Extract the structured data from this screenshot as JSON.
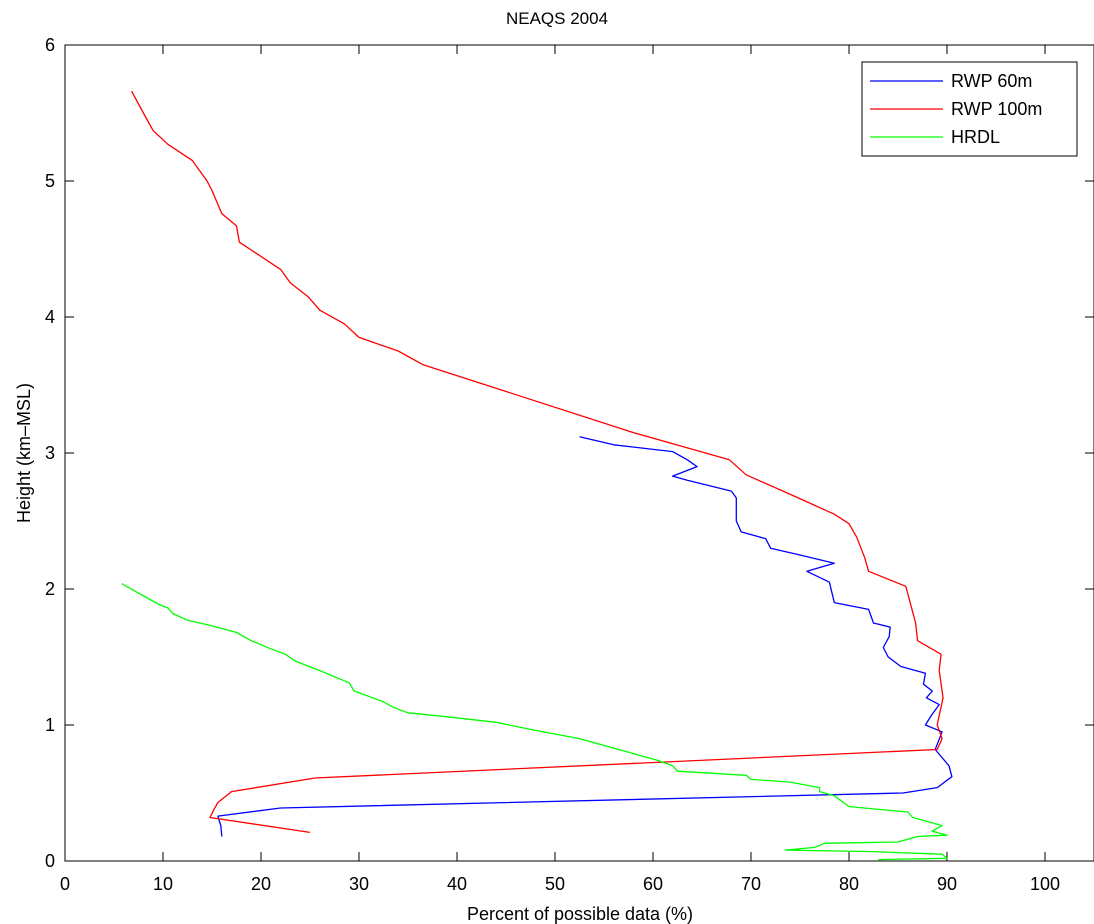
{
  "chart_data": {
    "type": "line",
    "title": "NEAQS 2004",
    "xlabel": "Percent of possible data (%)",
    "ylabel": "Height (km–MSL)",
    "xlim": [
      0,
      105
    ],
    "ylim": [
      0,
      6
    ],
    "xticks": [
      "0",
      "10",
      "20",
      "30",
      "40",
      "50",
      "60",
      "70",
      "80",
      "90",
      "100"
    ],
    "yticks": [
      "0",
      "1",
      "2",
      "3",
      "4",
      "5",
      "6"
    ],
    "grid": false,
    "legend_position": "top-right",
    "series": [
      {
        "name": "RWP 60m",
        "color": "#0000ff",
        "points": [
          [
            16.0,
            0.18
          ],
          [
            15.9,
            0.26
          ],
          [
            15.6,
            0.33
          ],
          [
            22.0,
            0.39
          ],
          [
            85.5,
            0.5
          ],
          [
            89.0,
            0.54
          ],
          [
            90.5,
            0.62
          ],
          [
            90.2,
            0.7
          ],
          [
            88.8,
            0.82
          ],
          [
            89.5,
            0.95
          ],
          [
            87.8,
            1.0
          ],
          [
            88.4,
            1.07
          ],
          [
            89.2,
            1.15
          ],
          [
            87.9,
            1.2
          ],
          [
            88.5,
            1.25
          ],
          [
            87.6,
            1.3
          ],
          [
            87.8,
            1.38
          ],
          [
            85.3,
            1.43
          ],
          [
            84.0,
            1.5
          ],
          [
            83.5,
            1.57
          ],
          [
            84.1,
            1.65
          ],
          [
            84.2,
            1.72
          ],
          [
            82.5,
            1.75
          ],
          [
            82.0,
            1.85
          ],
          [
            78.5,
            1.9
          ],
          [
            78.0,
            2.05
          ],
          [
            75.7,
            2.13
          ],
          [
            78.5,
            2.19
          ],
          [
            75.0,
            2.25
          ],
          [
            72.0,
            2.3
          ],
          [
            71.5,
            2.37
          ],
          [
            69.0,
            2.42
          ],
          [
            68.5,
            2.5
          ],
          [
            68.5,
            2.67
          ],
          [
            68.0,
            2.72
          ],
          [
            63.5,
            2.8
          ],
          [
            62.0,
            2.83
          ],
          [
            64.5,
            2.9
          ],
          [
            63.5,
            2.95
          ],
          [
            62.0,
            3.01
          ],
          [
            56.0,
            3.06
          ],
          [
            52.5,
            3.12
          ]
        ]
      },
      {
        "name": "RWP 100m",
        "color": "#ff0000",
        "points": [
          [
            25.0,
            0.21
          ],
          [
            14.8,
            0.32
          ],
          [
            15.2,
            0.38
          ],
          [
            15.6,
            0.43
          ],
          [
            17.0,
            0.51
          ],
          [
            25.5,
            0.61
          ],
          [
            89.0,
            0.82
          ],
          [
            89.5,
            0.9
          ],
          [
            89.0,
            1.0
          ],
          [
            89.3,
            1.1
          ],
          [
            89.6,
            1.2
          ],
          [
            89.2,
            1.4
          ],
          [
            89.4,
            1.52
          ],
          [
            87.0,
            1.62
          ],
          [
            86.8,
            1.75
          ],
          [
            86.5,
            1.83
          ],
          [
            85.8,
            2.02
          ],
          [
            82.0,
            2.13
          ],
          [
            81.6,
            2.23
          ],
          [
            80.8,
            2.38
          ],
          [
            80.0,
            2.48
          ],
          [
            78.5,
            2.55
          ],
          [
            74.5,
            2.68
          ],
          [
            69.5,
            2.84
          ],
          [
            67.8,
            2.95
          ],
          [
            58.0,
            3.15
          ],
          [
            36.5,
            3.65
          ],
          [
            34.0,
            3.75
          ],
          [
            30.0,
            3.85
          ],
          [
            28.5,
            3.95
          ],
          [
            26.0,
            4.05
          ],
          [
            24.8,
            4.15
          ],
          [
            23.0,
            4.25
          ],
          [
            22.0,
            4.35
          ],
          [
            17.8,
            4.55
          ],
          [
            17.5,
            4.67
          ],
          [
            16.0,
            4.76
          ],
          [
            15.0,
            4.93
          ],
          [
            14.5,
            5.0
          ],
          [
            13.0,
            5.15
          ],
          [
            10.5,
            5.27
          ],
          [
            9.0,
            5.37
          ],
          [
            8.0,
            5.5
          ],
          [
            6.8,
            5.66
          ]
        ]
      },
      {
        "name": "HRDL",
        "color": "#00ff00",
        "points": [
          [
            83.0,
            0.01
          ],
          [
            90.0,
            0.02
          ],
          [
            89.5,
            0.05
          ],
          [
            82.0,
            0.07
          ],
          [
            73.5,
            0.08
          ],
          [
            76.5,
            0.1
          ],
          [
            77.5,
            0.13
          ],
          [
            85.0,
            0.14
          ],
          [
            87.0,
            0.18
          ],
          [
            90.0,
            0.19
          ],
          [
            88.5,
            0.22
          ],
          [
            89.5,
            0.26
          ],
          [
            86.5,
            0.32
          ],
          [
            86.0,
            0.36
          ],
          [
            80.0,
            0.4
          ],
          [
            78.5,
            0.48
          ],
          [
            77.0,
            0.51
          ],
          [
            77.0,
            0.54
          ],
          [
            74.0,
            0.58
          ],
          [
            70.0,
            0.6
          ],
          [
            69.5,
            0.63
          ],
          [
            62.5,
            0.66
          ],
          [
            62.0,
            0.7
          ],
          [
            60.5,
            0.74
          ],
          [
            56.5,
            0.82
          ],
          [
            52.5,
            0.9
          ],
          [
            48.0,
            0.96
          ],
          [
            44.0,
            1.02
          ],
          [
            39.0,
            1.06
          ],
          [
            35.0,
            1.09
          ],
          [
            33.5,
            1.13
          ],
          [
            32.5,
            1.17
          ],
          [
            31.0,
            1.21
          ],
          [
            29.5,
            1.25
          ],
          [
            29.0,
            1.31
          ],
          [
            26.0,
            1.4
          ],
          [
            23.5,
            1.47
          ],
          [
            22.5,
            1.52
          ],
          [
            21.0,
            1.56
          ],
          [
            19.0,
            1.62
          ],
          [
            17.5,
            1.68
          ],
          [
            15.0,
            1.73
          ],
          [
            12.5,
            1.77
          ],
          [
            11.0,
            1.82
          ],
          [
            10.5,
            1.86
          ],
          [
            9.5,
            1.89
          ],
          [
            8.5,
            1.93
          ],
          [
            7.5,
            1.97
          ],
          [
            6.5,
            2.01
          ],
          [
            5.8,
            2.04
          ]
        ]
      }
    ]
  }
}
